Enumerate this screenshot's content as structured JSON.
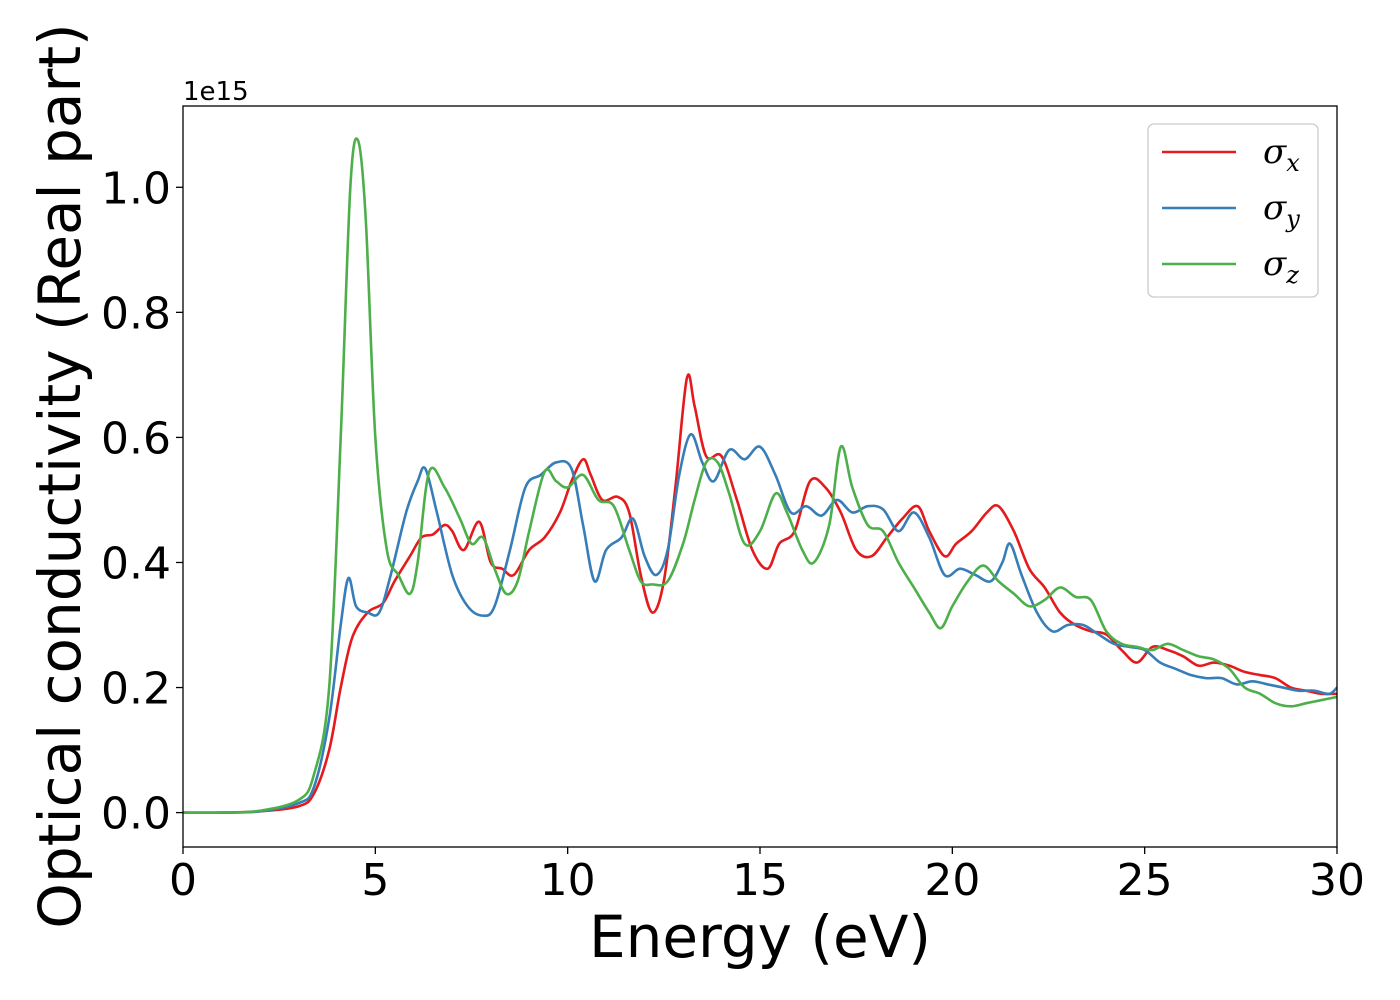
{
  "chart_data": {
    "type": "line",
    "title": "",
    "xlabel": "Energy (eV)",
    "ylabel": "Optical conductivity (Real part)",
    "y_offset_label": "1e15",
    "xlim": [
      0,
      30
    ],
    "ylim": [
      -0.055,
      1.13
    ],
    "x_ticks": [
      0,
      5,
      10,
      15,
      20,
      25,
      30
    ],
    "x_tick_labels": [
      "0",
      "5",
      "10",
      "15",
      "20",
      "25",
      "30"
    ],
    "y_ticks": [
      0.0,
      0.2,
      0.4,
      0.6,
      0.8,
      1.0
    ],
    "y_tick_labels": [
      "0.0",
      "0.2",
      "0.4",
      "0.6",
      "0.8",
      "1.0"
    ],
    "grid": false,
    "legend_position": "top-right",
    "series": [
      {
        "name": "σx",
        "legend_symbol": "σ",
        "legend_subscript": "x",
        "color": "#e41a1c",
        "points": [
          [
            0,
            0
          ],
          [
            1,
            0
          ],
          [
            2,
            0.002
          ],
          [
            3,
            0.01
          ],
          [
            3.4,
            0.03
          ],
          [
            3.8,
            0.1
          ],
          [
            4.1,
            0.2
          ],
          [
            4.4,
            0.28
          ],
          [
            4.8,
            0.32
          ],
          [
            5.2,
            0.335
          ],
          [
            5.5,
            0.37
          ],
          [
            5.9,
            0.41
          ],
          [
            6.2,
            0.44
          ],
          [
            6.5,
            0.445
          ],
          [
            6.8,
            0.46
          ],
          [
            7.0,
            0.45
          ],
          [
            7.3,
            0.42
          ],
          [
            7.7,
            0.465
          ],
          [
            8.0,
            0.4
          ],
          [
            8.3,
            0.39
          ],
          [
            8.6,
            0.38
          ],
          [
            9.0,
            0.42
          ],
          [
            9.4,
            0.44
          ],
          [
            9.8,
            0.48
          ],
          [
            10.1,
            0.53
          ],
          [
            10.4,
            0.565
          ],
          [
            10.6,
            0.54
          ],
          [
            10.9,
            0.5
          ],
          [
            11.3,
            0.505
          ],
          [
            11.6,
            0.48
          ],
          [
            11.9,
            0.38
          ],
          [
            12.2,
            0.32
          ],
          [
            12.5,
            0.37
          ],
          [
            12.8,
            0.52
          ],
          [
            13.1,
            0.695
          ],
          [
            13.3,
            0.65
          ],
          [
            13.6,
            0.57
          ],
          [
            14.0,
            0.57
          ],
          [
            14.4,
            0.5
          ],
          [
            14.8,
            0.42
          ],
          [
            15.2,
            0.39
          ],
          [
            15.5,
            0.43
          ],
          [
            15.9,
            0.45
          ],
          [
            16.3,
            0.53
          ],
          [
            16.7,
            0.52
          ],
          [
            17.1,
            0.48
          ],
          [
            17.5,
            0.42
          ],
          [
            17.9,
            0.41
          ],
          [
            18.3,
            0.44
          ],
          [
            18.7,
            0.47
          ],
          [
            19.1,
            0.49
          ],
          [
            19.4,
            0.45
          ],
          [
            19.8,
            0.41
          ],
          [
            20.1,
            0.43
          ],
          [
            20.5,
            0.45
          ],
          [
            20.9,
            0.48
          ],
          [
            21.2,
            0.49
          ],
          [
            21.6,
            0.45
          ],
          [
            22.0,
            0.39
          ],
          [
            22.4,
            0.36
          ],
          [
            22.8,
            0.32
          ],
          [
            23.2,
            0.3
          ],
          [
            23.6,
            0.29
          ],
          [
            24.0,
            0.285
          ],
          [
            24.4,
            0.26
          ],
          [
            24.8,
            0.24
          ],
          [
            25.2,
            0.265
          ],
          [
            25.6,
            0.26
          ],
          [
            26.0,
            0.25
          ],
          [
            26.4,
            0.235
          ],
          [
            26.8,
            0.24
          ],
          [
            27.2,
            0.235
          ],
          [
            27.6,
            0.225
          ],
          [
            28.0,
            0.22
          ],
          [
            28.4,
            0.215
          ],
          [
            28.8,
            0.2
          ],
          [
            29.2,
            0.195
          ],
          [
            29.6,
            0.19
          ],
          [
            30,
            0.19
          ]
        ]
      },
      {
        "name": "σy",
        "legend_symbol": "σ",
        "legend_subscript": "y",
        "color": "#377eb8",
        "points": [
          [
            0,
            0
          ],
          [
            1,
            0
          ],
          [
            2,
            0.002
          ],
          [
            3,
            0.015
          ],
          [
            3.4,
            0.04
          ],
          [
            3.8,
            0.15
          ],
          [
            4.1,
            0.3
          ],
          [
            4.3,
            0.375
          ],
          [
            4.5,
            0.33
          ],
          [
            4.8,
            0.32
          ],
          [
            5.1,
            0.32
          ],
          [
            5.4,
            0.38
          ],
          [
            5.8,
            0.48
          ],
          [
            6.1,
            0.53
          ],
          [
            6.3,
            0.55
          ],
          [
            6.6,
            0.48
          ],
          [
            7.0,
            0.38
          ],
          [
            7.4,
            0.33
          ],
          [
            7.8,
            0.315
          ],
          [
            8.1,
            0.33
          ],
          [
            8.5,
            0.42
          ],
          [
            8.9,
            0.52
          ],
          [
            9.3,
            0.54
          ],
          [
            9.7,
            0.56
          ],
          [
            10.1,
            0.55
          ],
          [
            10.4,
            0.46
          ],
          [
            10.7,
            0.37
          ],
          [
            11.0,
            0.42
          ],
          [
            11.4,
            0.44
          ],
          [
            11.7,
            0.47
          ],
          [
            12.0,
            0.41
          ],
          [
            12.3,
            0.38
          ],
          [
            12.6,
            0.42
          ],
          [
            12.9,
            0.54
          ],
          [
            13.2,
            0.605
          ],
          [
            13.5,
            0.56
          ],
          [
            13.8,
            0.53
          ],
          [
            14.2,
            0.58
          ],
          [
            14.6,
            0.565
          ],
          [
            15.0,
            0.585
          ],
          [
            15.4,
            0.54
          ],
          [
            15.8,
            0.48
          ],
          [
            16.2,
            0.49
          ],
          [
            16.6,
            0.475
          ],
          [
            17.0,
            0.5
          ],
          [
            17.4,
            0.48
          ],
          [
            17.8,
            0.49
          ],
          [
            18.2,
            0.485
          ],
          [
            18.6,
            0.45
          ],
          [
            19.0,
            0.48
          ],
          [
            19.4,
            0.44
          ],
          [
            19.8,
            0.38
          ],
          [
            20.2,
            0.39
          ],
          [
            20.6,
            0.38
          ],
          [
            21.0,
            0.37
          ],
          [
            21.3,
            0.4
          ],
          [
            21.5,
            0.43
          ],
          [
            21.8,
            0.38
          ],
          [
            22.2,
            0.32
          ],
          [
            22.6,
            0.29
          ],
          [
            23.0,
            0.3
          ],
          [
            23.4,
            0.3
          ],
          [
            23.8,
            0.285
          ],
          [
            24.2,
            0.27
          ],
          [
            24.6,
            0.265
          ],
          [
            25.0,
            0.26
          ],
          [
            25.4,
            0.24
          ],
          [
            25.8,
            0.23
          ],
          [
            26.2,
            0.22
          ],
          [
            26.6,
            0.215
          ],
          [
            27.0,
            0.215
          ],
          [
            27.4,
            0.205
          ],
          [
            27.8,
            0.21
          ],
          [
            28.2,
            0.205
          ],
          [
            28.6,
            0.2
          ],
          [
            29.0,
            0.195
          ],
          [
            29.4,
            0.195
          ],
          [
            29.8,
            0.19
          ],
          [
            30,
            0.2
          ]
        ]
      },
      {
        "name": "σz",
        "legend_symbol": "σ",
        "legend_subscript": "z",
        "color": "#4daf4a",
        "points": [
          [
            0,
            0
          ],
          [
            1,
            0
          ],
          [
            2,
            0.003
          ],
          [
            3,
            0.02
          ],
          [
            3.4,
            0.06
          ],
          [
            3.8,
            0.2
          ],
          [
            4.1,
            0.6
          ],
          [
            4.35,
            1.0
          ],
          [
            4.55,
            1.075
          ],
          [
            4.75,
            0.95
          ],
          [
            5.0,
            0.6
          ],
          [
            5.3,
            0.42
          ],
          [
            5.6,
            0.38
          ],
          [
            5.9,
            0.35
          ],
          [
            6.1,
            0.4
          ],
          [
            6.4,
            0.545
          ],
          [
            6.8,
            0.52
          ],
          [
            7.2,
            0.47
          ],
          [
            7.5,
            0.43
          ],
          [
            7.8,
            0.44
          ],
          [
            8.1,
            0.39
          ],
          [
            8.4,
            0.35
          ],
          [
            8.7,
            0.37
          ],
          [
            9.0,
            0.45
          ],
          [
            9.4,
            0.545
          ],
          [
            9.7,
            0.53
          ],
          [
            10.0,
            0.52
          ],
          [
            10.4,
            0.54
          ],
          [
            10.8,
            0.5
          ],
          [
            11.2,
            0.49
          ],
          [
            11.6,
            0.42
          ],
          [
            11.9,
            0.37
          ],
          [
            12.2,
            0.365
          ],
          [
            12.6,
            0.37
          ],
          [
            13.0,
            0.43
          ],
          [
            13.3,
            0.5
          ],
          [
            13.6,
            0.56
          ],
          [
            13.9,
            0.56
          ],
          [
            14.2,
            0.51
          ],
          [
            14.6,
            0.43
          ],
          [
            15.0,
            0.45
          ],
          [
            15.4,
            0.51
          ],
          [
            15.7,
            0.48
          ],
          [
            16.1,
            0.42
          ],
          [
            16.4,
            0.4
          ],
          [
            16.8,
            0.46
          ],
          [
            17.1,
            0.585
          ],
          [
            17.4,
            0.52
          ],
          [
            17.8,
            0.46
          ],
          [
            18.2,
            0.45
          ],
          [
            18.6,
            0.4
          ],
          [
            19.0,
            0.36
          ],
          [
            19.4,
            0.32
          ],
          [
            19.7,
            0.295
          ],
          [
            20.0,
            0.33
          ],
          [
            20.4,
            0.37
          ],
          [
            20.8,
            0.395
          ],
          [
            21.2,
            0.37
          ],
          [
            21.6,
            0.35
          ],
          [
            22.0,
            0.33
          ],
          [
            22.4,
            0.34
          ],
          [
            22.8,
            0.36
          ],
          [
            23.2,
            0.345
          ],
          [
            23.6,
            0.34
          ],
          [
            24.0,
            0.29
          ],
          [
            24.4,
            0.27
          ],
          [
            24.8,
            0.265
          ],
          [
            25.2,
            0.26
          ],
          [
            25.6,
            0.27
          ],
          [
            26.0,
            0.26
          ],
          [
            26.4,
            0.25
          ],
          [
            26.8,
            0.245
          ],
          [
            27.2,
            0.23
          ],
          [
            27.6,
            0.2
          ],
          [
            28.0,
            0.19
          ],
          [
            28.4,
            0.175
          ],
          [
            28.8,
            0.17
          ],
          [
            29.2,
            0.175
          ],
          [
            29.6,
            0.18
          ],
          [
            30,
            0.185
          ]
        ]
      }
    ]
  }
}
